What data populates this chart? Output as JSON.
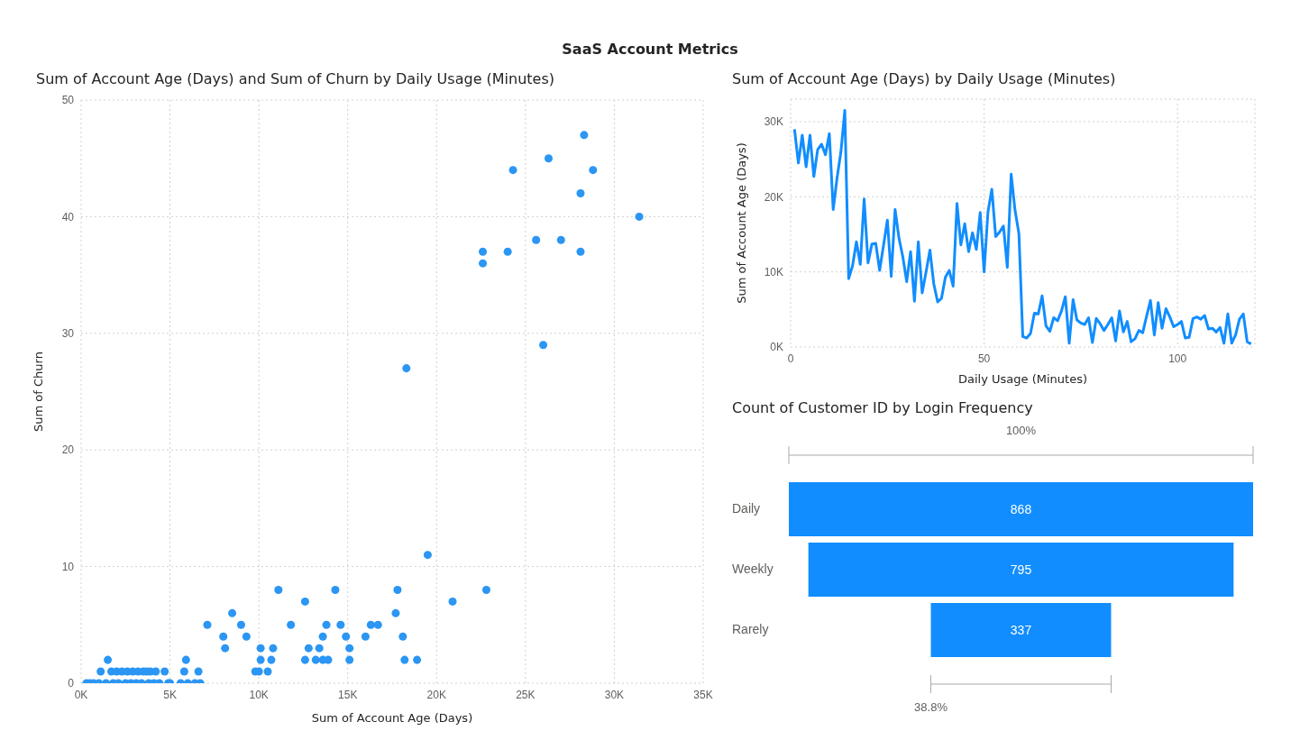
{
  "chart_data": [
    {
      "type": "other",
      "title": "SaaS Account Metrics"
    },
    {
      "type": "scatter",
      "title": "Sum of Account Age (Days) and Sum of Churn by Daily Usage (Minutes)",
      "xlabel": "Sum of Account Age (Days)",
      "ylabel": "Sum of Churn",
      "marker": "circle",
      "grid": true,
      "legend": false,
      "xlim": [
        0,
        35000
      ],
      "xticks": [
        {
          "value": 0,
          "label": "0K"
        },
        {
          "value": 5000,
          "label": "5K"
        },
        {
          "value": 10000,
          "label": "10K"
        },
        {
          "value": 15000,
          "label": "15K"
        },
        {
          "value": 20000,
          "label": "20K"
        },
        {
          "value": 25000,
          "label": "25K"
        },
        {
          "value": 30000,
          "label": "30K"
        },
        {
          "value": 35000,
          "label": "35K"
        }
      ],
      "ylim": [
        0,
        50
      ],
      "yticks": [
        0,
        10,
        20,
        30,
        40,
        50
      ],
      "series": [
        {
          "color": "#2b96f3",
          "x": [
            300,
            500,
            700,
            1000,
            1400,
            1800,
            2100,
            2500,
            2800,
            3100,
            3400,
            3800,
            4100,
            4400,
            4900,
            5000,
            1100,
            1700,
            2000,
            2300,
            2600,
            2900,
            3200,
            3500,
            3700,
            3900,
            4200,
            4700,
            1500,
            5600,
            6000,
            6400,
            6700,
            5800,
            6600,
            5900,
            7100,
            8000,
            8100,
            8500,
            9000,
            9300,
            9800,
            10000,
            10100,
            10100,
            10500,
            10700,
            10800,
            11100,
            11800,
            12600,
            12600,
            12800,
            13200,
            13400,
            13600,
            13600,
            13800,
            13900,
            14300,
            14600,
            14900,
            15100,
            15100,
            16000,
            16300,
            16700,
            17700,
            17800,
            18100,
            18200,
            18900,
            18300,
            19500,
            20900,
            22800,
            22600,
            22600,
            24000,
            24300,
            25600,
            26000,
            26300,
            27000,
            28100,
            28100,
            28300,
            28800,
            31400
          ],
          "values": [
            0,
            0,
            0,
            0,
            0,
            0,
            0,
            0,
            0,
            0,
            0,
            0,
            0,
            0,
            0,
            0,
            1,
            1,
            1,
            1,
            1,
            1,
            1,
            1,
            1,
            1,
            1,
            1,
            2,
            0,
            0,
            0,
            0,
            1,
            1,
            2,
            5,
            4,
            3,
            6,
            5,
            4,
            1,
            1,
            3,
            2,
            1,
            2,
            3,
            8,
            5,
            7,
            2,
            3,
            2,
            3,
            4,
            2,
            5,
            2,
            8,
            5,
            4,
            3,
            2,
            4,
            5,
            5,
            6,
            8,
            4,
            2,
            2,
            27,
            11,
            7,
            8,
            37,
            36,
            37,
            44,
            38,
            29,
            45,
            38,
            42,
            37,
            47,
            44,
            40
          ]
        }
      ]
    },
    {
      "type": "line",
      "title": "Sum of Account Age (Days) by Daily Usage (Minutes)",
      "xlabel": "Daily Usage (Minutes)",
      "ylabel": "Sum of Account Age (Days)",
      "marker": "none",
      "line_style": "solid",
      "grid": true,
      "legend": false,
      "xlim": [
        0,
        120
      ],
      "xticks": [
        0,
        50,
        100
      ],
      "ylim": [
        0,
        33000
      ],
      "yticks": [
        {
          "value": 0,
          "label": "0K"
        },
        {
          "value": 10000,
          "label": "10K"
        },
        {
          "value": 20000,
          "label": "20K"
        },
        {
          "value": 30000,
          "label": "30K"
        }
      ],
      "x": [
        1,
        2,
        3,
        4,
        5,
        6,
        7,
        8,
        9,
        10,
        11,
        12,
        13,
        14,
        15,
        16,
        17,
        18,
        19,
        20,
        21,
        22,
        23,
        24,
        25,
        26,
        27,
        28,
        29,
        30,
        31,
        32,
        33,
        34,
        35,
        36,
        37,
        38,
        39,
        40,
        41,
        42,
        43,
        44,
        45,
        46,
        47,
        48,
        49,
        50,
        51,
        52,
        53,
        54,
        55,
        56,
        57,
        58,
        59,
        60,
        61,
        62,
        63,
        64,
        65,
        66,
        67,
        68,
        69,
        70,
        71,
        72,
        73,
        74,
        75,
        76,
        77,
        78,
        79,
        80,
        81,
        82,
        83,
        84,
        85,
        86,
        87,
        88,
        89,
        90,
        91,
        92,
        93,
        94,
        95,
        96,
        97,
        98,
        99,
        100,
        101,
        102,
        103,
        104,
        105,
        106,
        107,
        108,
        109,
        110,
        111,
        112,
        113,
        114,
        115,
        116,
        117,
        118,
        119
      ],
      "series": [
        {
          "color": "#118dff",
          "values": [
            29000,
            24500,
            28200,
            24000,
            28200,
            22700,
            26300,
            27000,
            25600,
            28400,
            18300,
            22500,
            26000,
            31500,
            9100,
            10800,
            14000,
            11000,
            19700,
            11200,
            13700,
            13800,
            10200,
            13500,
            16900,
            9400,
            18300,
            14500,
            12000,
            8700,
            12700,
            6100,
            14000,
            7200,
            10000,
            12900,
            8400,
            6000,
            6500,
            9300,
            10200,
            8100,
            19100,
            13600,
            16400,
            12700,
            15200,
            13000,
            17900,
            10000,
            18000,
            21000,
            14700,
            15300,
            16100,
            10600,
            23000,
            18200,
            15100,
            1400,
            1200,
            1800,
            4500,
            4400,
            6800,
            2800,
            2100,
            3900,
            3500,
            4800,
            6700,
            500,
            6300,
            3600,
            3200,
            3000,
            3900,
            600,
            3800,
            3100,
            2200,
            3000,
            3900,
            800,
            4800,
            2000,
            3400,
            700,
            1100,
            2200,
            1900,
            4100,
            6200,
            1600,
            5900,
            2500,
            5100,
            4000,
            2700,
            3000,
            3400,
            1200,
            1300,
            3800,
            4000,
            3700,
            4200,
            2400,
            2500,
            2000,
            2600,
            500,
            4400,
            500,
            1600,
            3700,
            4400,
            700,
            400
          ]
        }
      ]
    },
    {
      "type": "other",
      "title": "Count of Customer ID by Login Frequency",
      "categories": [
        "Daily",
        "Weekly",
        "Rarely"
      ],
      "values": [
        868,
        795,
        337
      ],
      "color": "#118dff",
      "data_labels": true,
      "annotations": [
        "100%",
        "38.8%"
      ]
    }
  ]
}
